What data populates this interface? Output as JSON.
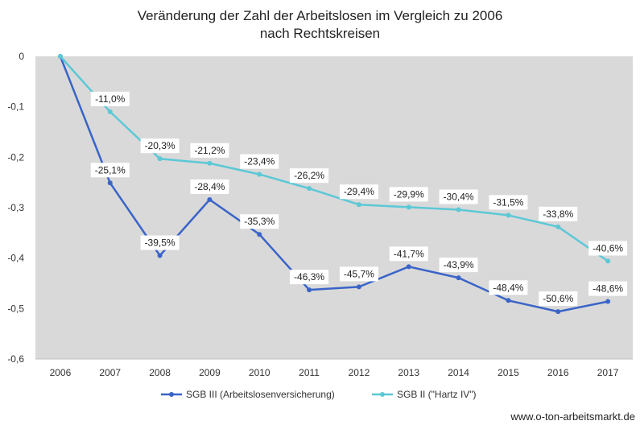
{
  "title_line1": "Veränderung der Zahl der Arbeitslosen im Vergleich zu 2006",
  "title_line2": "nach Rechtskreisen",
  "footer": "www.o-ton-arbeitsmarkt.de",
  "chart_data": {
    "type": "line",
    "title": "Veränderung der Zahl der Arbeitslosen im Vergleich zu 2006 nach Rechtskreisen",
    "xlabel": "",
    "ylabel": "",
    "x": [
      "2006",
      "2007",
      "2008",
      "2009",
      "2010",
      "2011",
      "2012",
      "2013",
      "2014",
      "2015",
      "2016",
      "2017"
    ],
    "y_ticks": [
      "0",
      "-0,1",
      "-0,2",
      "-0,3",
      "-0,4",
      "-0,5",
      "-0,6"
    ],
    "ylim": [
      -0.6,
      0
    ],
    "grid": false,
    "legend_position": "bottom",
    "series": [
      {
        "name": "SGB III (Arbeitslosenversicherung)",
        "color": "#3a64c8",
        "values": [
          0,
          -0.251,
          -0.395,
          -0.284,
          -0.353,
          -0.463,
          -0.457,
          -0.417,
          -0.439,
          -0.484,
          -0.506,
          -0.486
        ],
        "labels": [
          "",
          "-25,1%",
          "-39,5%",
          "-28,4%",
          "-35,3%",
          "-46,3%",
          "-45,7%",
          "-41,7%",
          "-43,9%",
          "-48,4%",
          "-50,6%",
          "-48,6%"
        ]
      },
      {
        "name": "SGB II (\"Hartz IV\")",
        "color": "#5cc8d6",
        "values": [
          0,
          -0.11,
          -0.203,
          -0.212,
          -0.234,
          -0.262,
          -0.294,
          -0.299,
          -0.304,
          -0.315,
          -0.338,
          -0.406
        ],
        "labels": [
          "",
          "-11,0%",
          "-20,3%",
          "-21,2%",
          "-23,4%",
          "-26,2%",
          "-29,4%",
          "-29,9%",
          "-30,4%",
          "-31,5%",
          "-33,8%",
          "-40,6%"
        ]
      }
    ]
  }
}
